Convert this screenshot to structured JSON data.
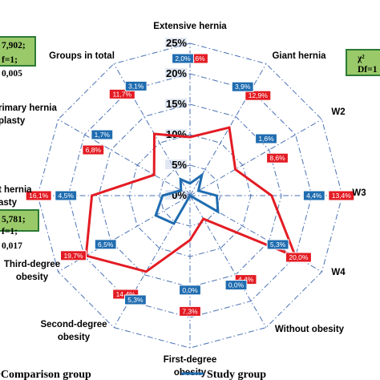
{
  "chart_data": {
    "type": "radar",
    "axes": [
      "Extensive hernia",
      "Giant hernia",
      "W2",
      "W3",
      "W4",
      "Without obesity",
      "First-degree obesity",
      "Second-degree obesity",
      "Third-degree obesity",
      "Recurrent hernia plasty",
      "Primary hernia plasty",
      "Groups in total"
    ],
    "axis_label_lines": [
      [
        "Extensive hernia"
      ],
      [
        "Giant hernia"
      ],
      [
        "W2"
      ],
      [
        "W3"
      ],
      [
        "W4"
      ],
      [
        "Without obesity"
      ],
      [
        "First-degree",
        "obesity"
      ],
      [
        "Second-degree",
        "obesity"
      ],
      [
        "Third-degree",
        "obesity"
      ],
      [
        "t hernia",
        "asty"
      ],
      [
        "rimary hernia",
        "plasty"
      ],
      [
        "Groups in total"
      ]
    ],
    "rlim": [
      0,
      25
    ],
    "ticks": [
      0,
      5,
      10,
      15,
      20,
      25
    ],
    "tick_labels": [
      "0%",
      "5%",
      "10%",
      "15%",
      "20%",
      "25%"
    ],
    "series": [
      {
        "name": "Comparison group",
        "color": "#e31b23",
        "values": [
          9.6,
          12.9,
          8.6,
          13.4,
          20.0,
          4.4,
          7.3,
          14.4,
          19.7,
          16.1,
          6.8,
          11.7
        ],
        "labels": [
          "9,6%",
          "12,9%",
          "8,6%",
          "13,4%",
          "20,0%",
          "4,4%",
          "7,3%",
          "14,4%",
          "19,7%",
          "16,1%",
          "6,8%",
          "11,7%"
        ]
      },
      {
        "name": "Study group",
        "color": "#1f6cb0",
        "values": [
          2.0,
          3.9,
          1.6,
          4.4,
          5.3,
          0.0,
          0.0,
          5.3,
          6.5,
          4.5,
          1.7,
          3.1
        ],
        "labels": [
          "2,0%",
          "3,9%",
          "1,6%",
          "4,4%",
          "5,3%",
          "0,0%",
          "0,0%",
          "5,3%",
          "6,5%",
          "4,5%",
          "1,7%",
          "3,1%"
        ]
      }
    ],
    "stats": [
      {
        "lines": [
          "7,902;",
          "f=1;",
          "0,005"
        ]
      },
      {
        "lines": [
          "χ²",
          "Df=1"
        ]
      },
      {
        "lines": [
          "5,781;",
          "f=1;",
          "0,017"
        ]
      }
    ],
    "legend": [
      "•Comparison group",
      "Study group"
    ],
    "colors": {
      "grid": "#4a72b5",
      "stats_fill": "#9ac969",
      "stats_border": "#2d7a35"
    }
  }
}
